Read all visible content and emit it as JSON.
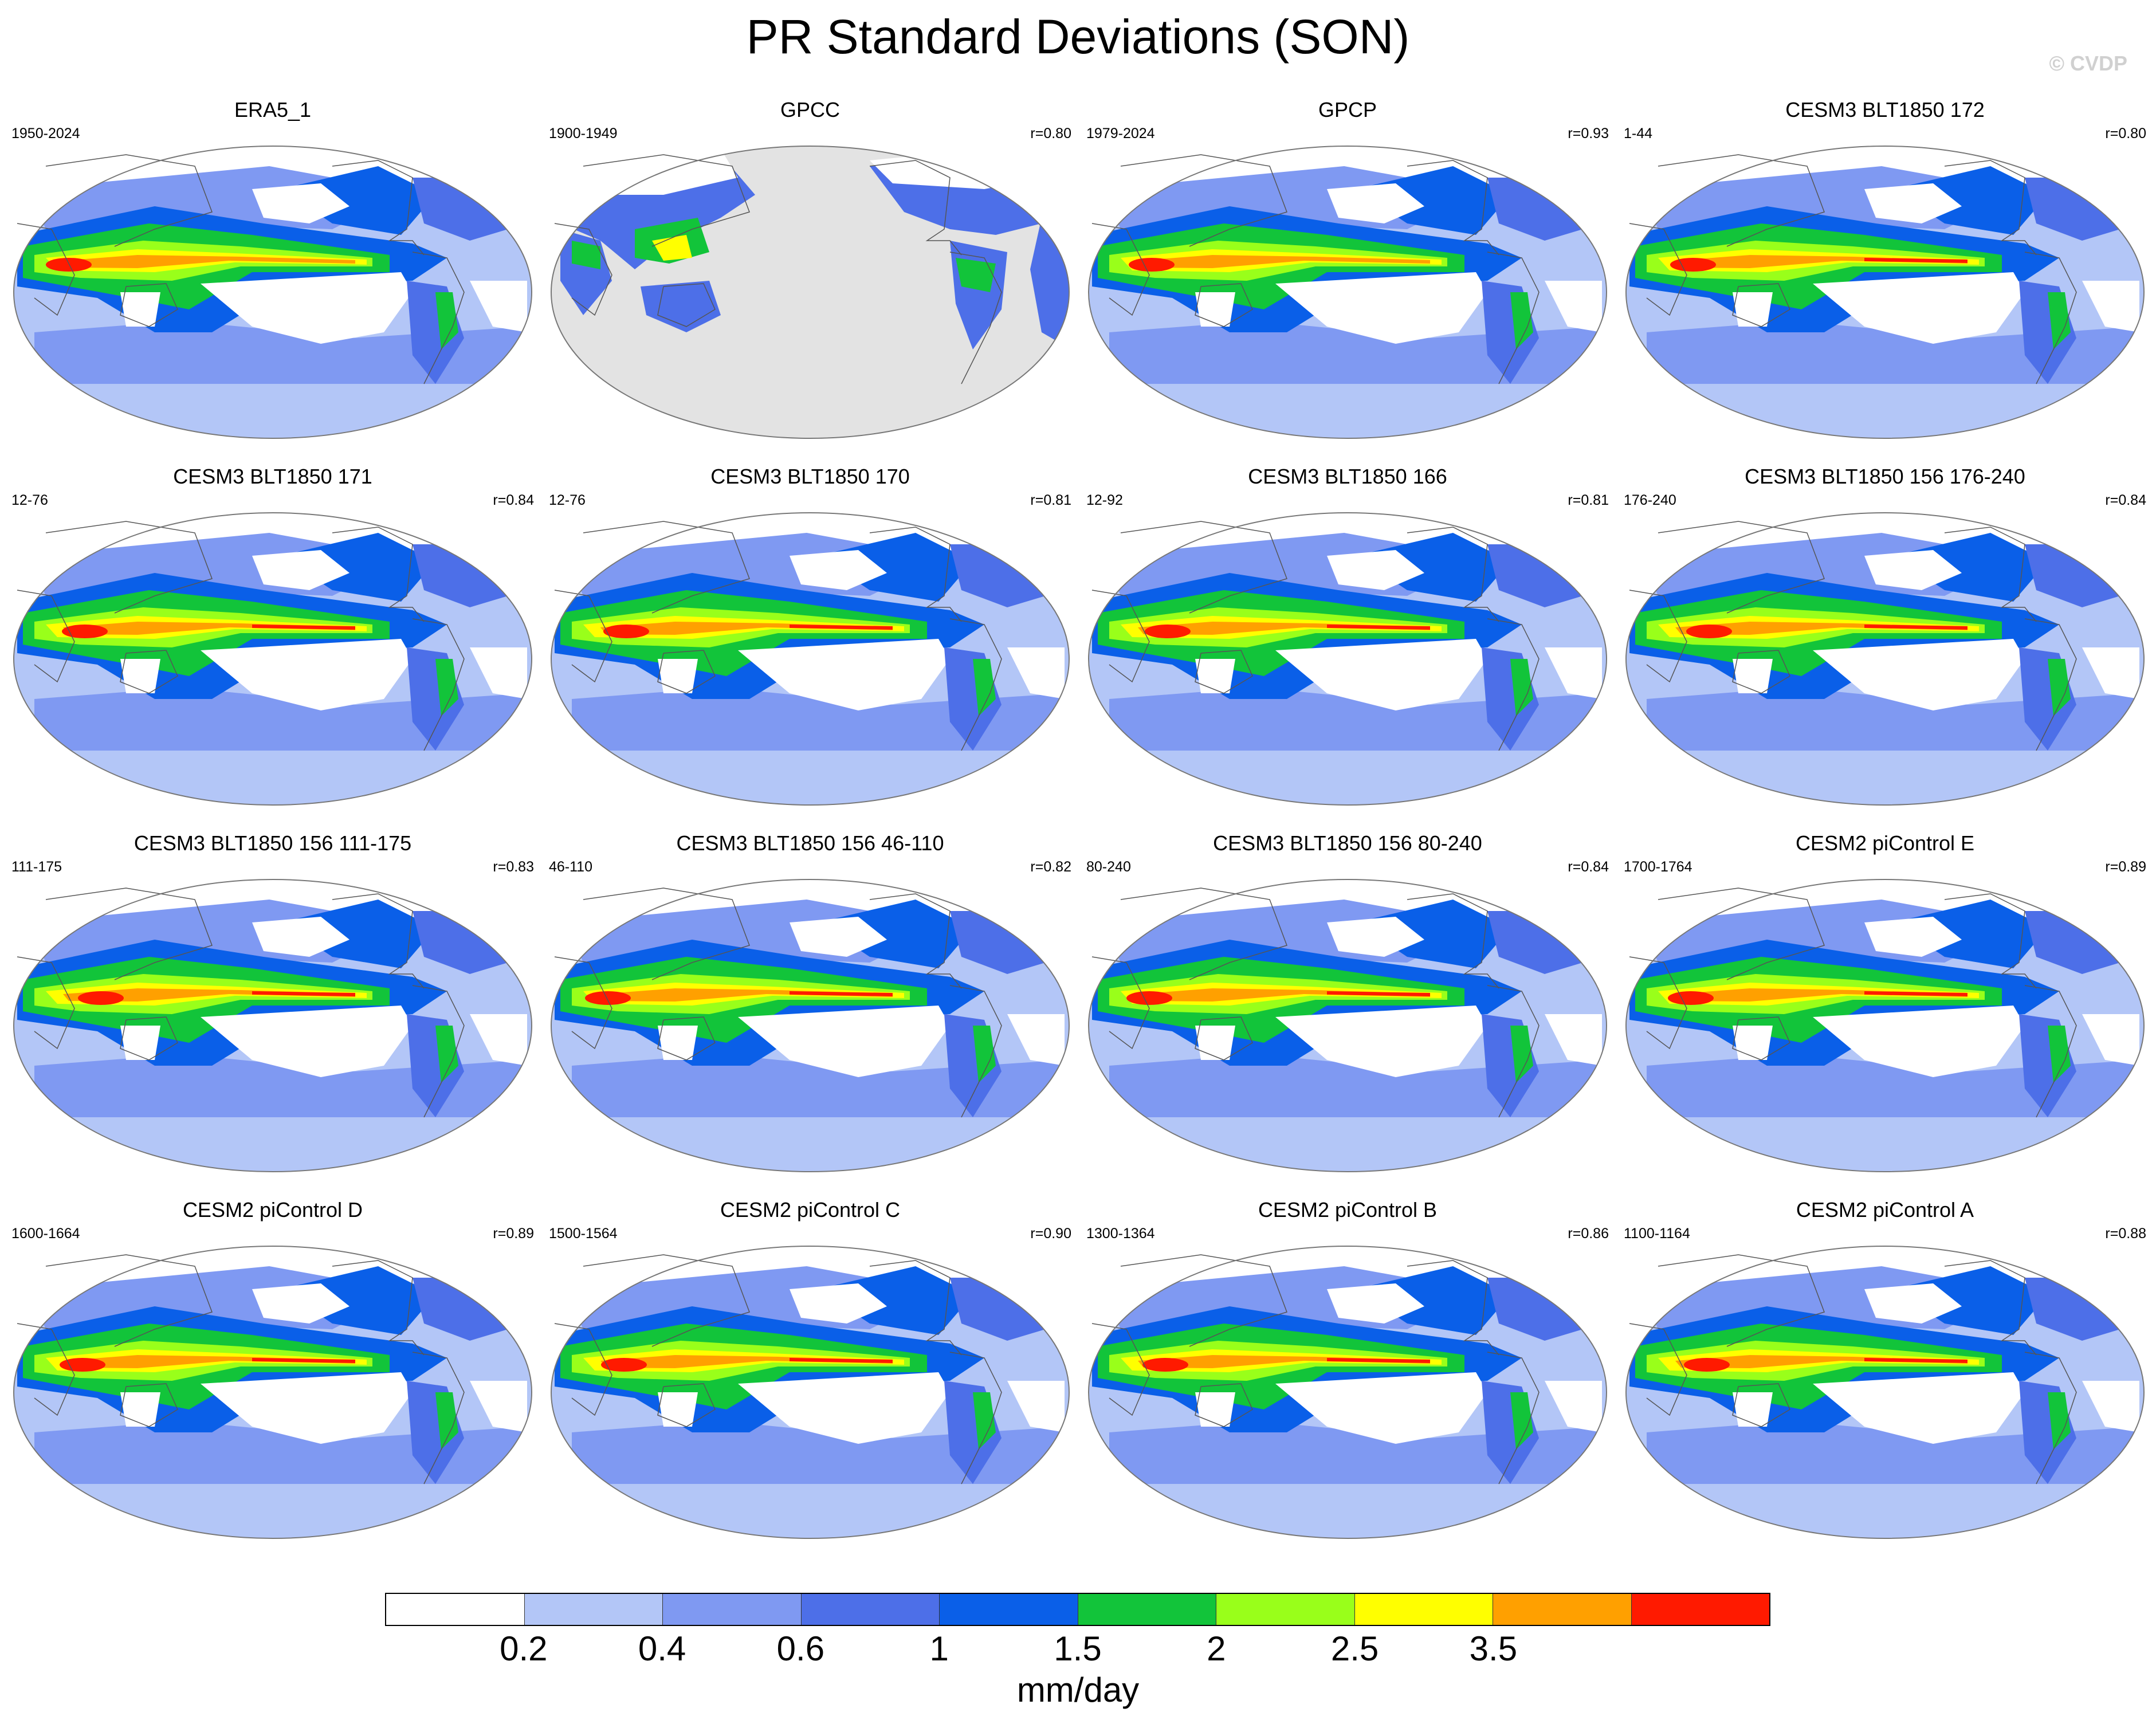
{
  "title": "PR Standard Deviations (SON)",
  "watermark": "© CVDP",
  "units": "mm/day",
  "colorbar": {
    "colors": [
      "#ffffff",
      "#b3c6f7",
      "#7f99f2",
      "#4d6fe8",
      "#0a5fe8",
      "#12c43a",
      "#99ff1a",
      "#ffff00",
      "#ffa000",
      "#ff1a00"
    ],
    "labels": [
      "0.2",
      "0.4",
      "0.6",
      "1",
      "1.5",
      "2",
      "2.5",
      "3.5"
    ]
  },
  "missing_color": "#e3e3e3",
  "panels": [
    {
      "title": "ERA5_1",
      "years": "1950-2024",
      "r": ""
    },
    {
      "title": "GPCC",
      "years": "1900-1949",
      "r": "r=0.80"
    },
    {
      "title": "GPCP",
      "years": "1979-2024",
      "r": "r=0.93"
    },
    {
      "title": "CESM3 BLT1850 172",
      "years": "1-44",
      "r": "r=0.80"
    },
    {
      "title": "CESM3 BLT1850 171",
      "years": "12-76",
      "r": "r=0.84"
    },
    {
      "title": "CESM3 BLT1850 170",
      "years": "12-76",
      "r": "r=0.81"
    },
    {
      "title": "CESM3 BLT1850 166",
      "years": "12-92",
      "r": "r=0.81"
    },
    {
      "title": "CESM3 BLT1850 156 176-240",
      "years": "176-240",
      "r": "r=0.84"
    },
    {
      "title": "CESM3 BLT1850 156 111-175",
      "years": "111-175",
      "r": "r=0.83"
    },
    {
      "title": "CESM3 BLT1850 156 46-110",
      "years": "46-110",
      "r": "r=0.82"
    },
    {
      "title": "CESM3 BLT1850 156 80-240",
      "years": "80-240",
      "r": "r=0.84"
    },
    {
      "title": "CESM2 piControl E",
      "years": "1700-1764",
      "r": "r=0.89"
    },
    {
      "title": "CESM2 piControl D",
      "years": "1600-1664",
      "r": "r=0.89"
    },
    {
      "title": "CESM2 piControl C",
      "years": "1500-1564",
      "r": "r=0.90"
    },
    {
      "title": "CESM2 piControl B",
      "years": "1300-1364",
      "r": "r=0.86"
    },
    {
      "title": "CESM2 piControl A",
      "years": "1100-1164",
      "r": "r=0.88"
    }
  ]
}
